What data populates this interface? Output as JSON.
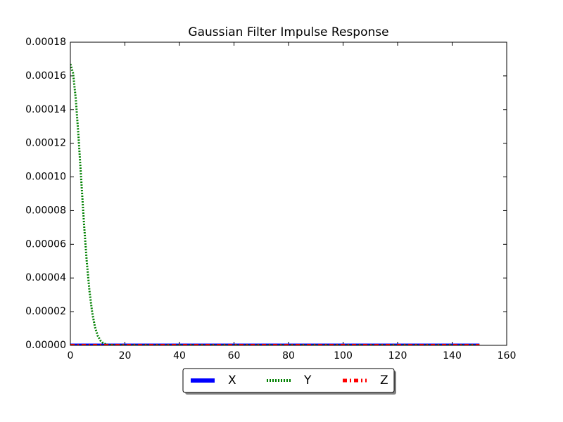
{
  "chart_data": {
    "type": "line",
    "title": "Gaussian Filter Impulse Response",
    "x": [
      0,
      1,
      2,
      3,
      4,
      5,
      6,
      7,
      8,
      9,
      10,
      11,
      12,
      13,
      14,
      15,
      20,
      30,
      40,
      50,
      60,
      70,
      80,
      90,
      100,
      110,
      120,
      130,
      140,
      150
    ],
    "series": [
      {
        "name": "X",
        "color": "#0000ff",
        "linestyle": "solid",
        "linewidth": 5,
        "values": [
          0,
          0,
          0,
          0,
          0,
          0,
          0,
          0,
          0,
          0,
          0,
          0,
          0,
          0,
          0,
          0,
          0,
          0,
          0,
          0,
          0,
          0,
          0,
          0,
          0,
          0,
          0,
          0,
          0,
          0
        ]
      },
      {
        "name": "Y",
        "color": "#008000",
        "linestyle": "dotted",
        "linewidth": 3,
        "values": [
          0.000167,
          0.0001615,
          0.000146,
          0.0001235,
          9.77e-05,
          7.22e-05,
          4.99e-05,
          3.23e-05,
          1.95e-05,
          1.1e-05,
          5.8e-06,
          2.9e-06,
          1.3e-06,
          6e-07,
          2e-07,
          1e-07,
          0,
          0,
          0,
          0,
          0,
          0,
          0,
          0,
          0,
          0,
          0,
          0,
          0,
          0
        ]
      },
      {
        "name": "Z",
        "color": "#ff0000",
        "linestyle": "dashdot",
        "linewidth": 4,
        "values": [
          0,
          0,
          0,
          0,
          0,
          0,
          0,
          0,
          0,
          0,
          0,
          0,
          0,
          0,
          0,
          0,
          0,
          0,
          0,
          0,
          0,
          0,
          0,
          0,
          0,
          0,
          0,
          0,
          0,
          0
        ]
      }
    ],
    "xlim": [
      0,
      160
    ],
    "xticks": [
      0,
      20,
      40,
      60,
      80,
      100,
      120,
      140,
      160
    ],
    "ylim": [
      0,
      0.00018
    ],
    "yticks": [
      {
        "value": 0,
        "label": "0.00000"
      },
      {
        "value": 2e-05,
        "label": "0.00002"
      },
      {
        "value": 4e-05,
        "label": "0.00004"
      },
      {
        "value": 6e-05,
        "label": "0.00006"
      },
      {
        "value": 8e-05,
        "label": "0.00008"
      },
      {
        "value": 0.0001,
        "label": "0.00010"
      },
      {
        "value": 0.00012,
        "label": "0.00012"
      },
      {
        "value": 0.00014,
        "label": "0.00014"
      },
      {
        "value": 0.00016,
        "label": "0.00016"
      },
      {
        "value": 0.00018,
        "label": "0.00018"
      }
    ],
    "grid": false,
    "legend": "below"
  }
}
